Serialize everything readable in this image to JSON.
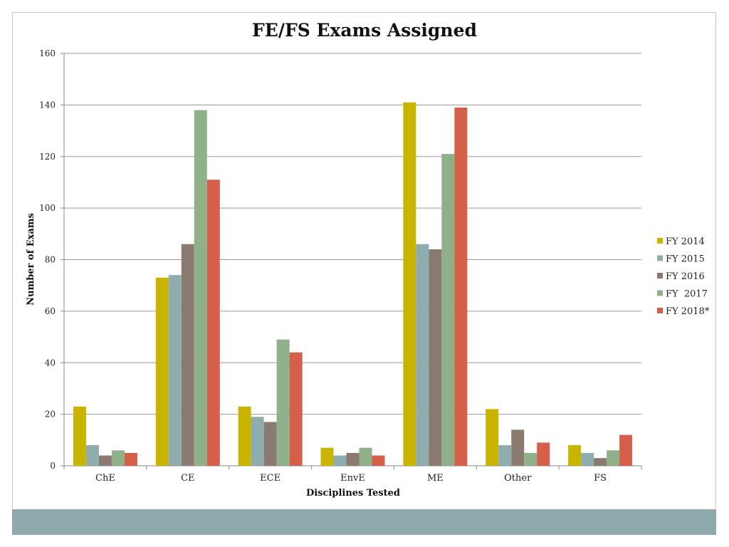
{
  "chart_data": {
    "type": "bar",
    "title": "FE/FS Exams Assigned",
    "xlabel": "Disciplines Tested",
    "ylabel": "Number of Exams",
    "ylim": [
      0,
      160
    ],
    "yticks": [
      0,
      20,
      40,
      60,
      80,
      100,
      120,
      140,
      160
    ],
    "grid": true,
    "legend_position": "right",
    "categories": [
      "ChE",
      "CE",
      "ECE",
      "EnvE",
      "ME",
      "Other",
      "FS"
    ],
    "series": [
      {
        "name": "FY 2014",
        "color": "#c9b400",
        "values": [
          23,
          73,
          23,
          7,
          141,
          22,
          8
        ]
      },
      {
        "name": "FY 2015",
        "color": "#8fadaf",
        "values": [
          8,
          74,
          19,
          4,
          86,
          8,
          5
        ]
      },
      {
        "name": "FY 2016",
        "color": "#8b7a70",
        "values": [
          4,
          86,
          17,
          5,
          84,
          14,
          3
        ]
      },
      {
        "name": "FY  2017",
        "color": "#90b08a",
        "values": [
          6,
          138,
          49,
          7,
          121,
          5,
          6
        ]
      },
      {
        "name": "FY 2018*",
        "color": "#d4604a",
        "values": [
          5,
          111,
          44,
          4,
          139,
          9,
          12
        ]
      }
    ]
  }
}
